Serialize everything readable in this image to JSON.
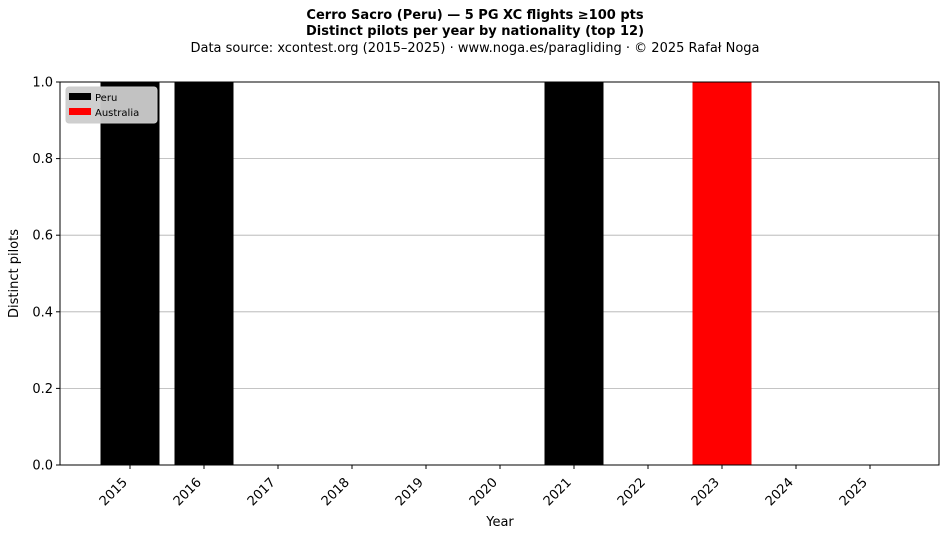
{
  "header": {
    "title": "Cerro Sacro (Peru)  —  5 PG XC flights ≥100 pts",
    "subtitle": "Distinct pilots per year by nationality (top 12)",
    "source": "Data source: xcontest.org (2015–2025)  ·  www.noga.es/paragliding  ·  © 2025 Rafał Noga"
  },
  "chart_data": {
    "type": "bar",
    "stacked": true,
    "title": "Cerro Sacro (Peru)  —  5 PG XC flights ≥100 pts",
    "subtitle": "Distinct pilots per year by nationality (top 12)",
    "xlabel": "Year",
    "ylabel": "Distinct pilots",
    "categories": [
      "2015",
      "2016",
      "2017",
      "2018",
      "2019",
      "2020",
      "2021",
      "2022",
      "2023",
      "2024",
      "2025"
    ],
    "series": [
      {
        "name": "Peru",
        "color": "#000000",
        "values": [
          1,
          1,
          0,
          0,
          0,
          0,
          1,
          0,
          0,
          0,
          0
        ]
      },
      {
        "name": "Australia",
        "color": "#ff0000",
        "values": [
          0,
          0,
          0,
          0,
          0,
          0,
          0,
          0,
          1,
          0,
          0
        ]
      }
    ],
    "ylim": [
      0,
      1
    ],
    "yticks": [
      0.0,
      0.2,
      0.4,
      0.6,
      0.8,
      1.0
    ],
    "ytick_labels": [
      "0.0",
      "0.2",
      "0.4",
      "0.6",
      "0.8",
      "1.0"
    ],
    "grid": "horizontal",
    "legend_position": "top-left"
  }
}
